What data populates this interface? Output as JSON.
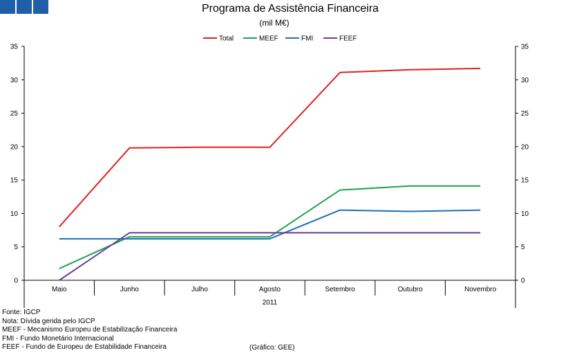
{
  "header": {
    "title": "Programa de Assistência Financeira",
    "subtitle": "(mil M€)"
  },
  "chart_data": {
    "type": "line",
    "title": "Programa de Assistência Financeira",
    "subtitle": "(mil M€)",
    "categories": [
      "Maio",
      "Junho",
      "Julho",
      "Agosto",
      "Setembro",
      "Outubro",
      "Novembro"
    ],
    "x_group_label": "2011",
    "ylim": [
      0,
      35
    ],
    "yticks": [
      0,
      5,
      10,
      15,
      20,
      25,
      30,
      35
    ],
    "secondary_yaxis": true,
    "grid": false,
    "legend_position": "top",
    "series": [
      {
        "name": "Total",
        "color": "#e02020",
        "values": [
          8.0,
          19.8,
          19.9,
          19.9,
          31.1,
          31.5,
          31.7
        ]
      },
      {
        "name": "MEEF",
        "color": "#1ea14b",
        "values": [
          1.75,
          6.5,
          6.5,
          6.5,
          13.5,
          14.1,
          14.1
        ]
      },
      {
        "name": "FMI",
        "color": "#1f6fb2",
        "values": [
          6.2,
          6.2,
          6.2,
          6.2,
          10.5,
          10.3,
          10.5
        ]
      },
      {
        "name": "FEEF",
        "color": "#6a3d9a",
        "values": [
          0.0,
          7.1,
          7.1,
          7.1,
          7.1,
          7.1,
          7.1
        ]
      }
    ]
  },
  "footer": {
    "notes": [
      "Fonte: IGCP",
      "Nota: Dívida gerida pelo IGCP",
      "MEEF  - Mecanismo Europeu de Estabilização Financeira",
      "FMI  - Fundo Monetário Internacional",
      "FEEF  - Fundo de Europeu de Estabilidade Financeira"
    ],
    "credit": "(Gráfico: GEE)"
  }
}
